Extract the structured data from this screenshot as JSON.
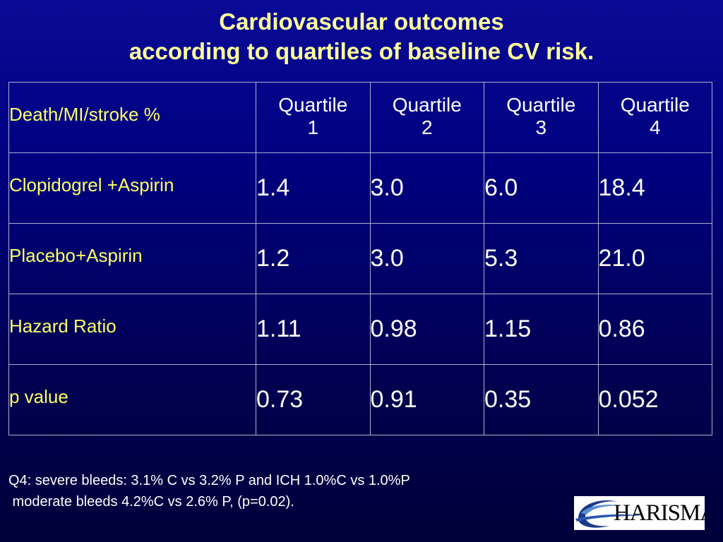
{
  "title": {
    "line1": "Cardiovascular outcomes",
    "line2": "according to quartiles of baseline CV risk."
  },
  "table": {
    "header": {
      "label": "Death/MI/stroke %",
      "quartiles": [
        {
          "line1": "Quartile",
          "line2": "1"
        },
        {
          "line1": "Quartile",
          "line2": "2"
        },
        {
          "line1": "Quartile",
          "line2": "3"
        },
        {
          "line1": "Quartile",
          "line2": "4"
        }
      ]
    },
    "rows": [
      {
        "label": "Clopidogrel +Aspirin",
        "values": [
          "1.4",
          "3.0",
          "6.0",
          "18.4"
        ]
      },
      {
        "label": "Placebo+Aspirin",
        "values": [
          "1.2",
          "3.0",
          "5.3",
          "21.0"
        ]
      },
      {
        "label": "Hazard Ratio",
        "values": [
          "1.11",
          "0.98",
          "1.15",
          "0.86"
        ]
      },
      {
        "label": "p value",
        "values": [
          "0.73",
          "0.91",
          "0.35",
          "0.052"
        ]
      }
    ]
  },
  "footnote": {
    "line1": "Q4: severe bleeds: 3.1% C vs 3.2% P and ICH 1.0%C vs 1.0%P",
    "line2": " moderate bleeds 4.2%C vs 2.6% P, (p=0.02)."
  },
  "logo": {
    "text": "HARISMA",
    "icon": "charisma-swoosh-logo",
    "colors": {
      "swoosh_dark": "#1a3a8c",
      "swoosh_light": "#5a8fd0"
    }
  },
  "colors": {
    "title": "#ffff99",
    "row_label": "#ffff66",
    "value_text": "#ffffff",
    "grid": "#aab0d0",
    "background_top": "#0a0a96",
    "background_bottom": "#00003a"
  }
}
